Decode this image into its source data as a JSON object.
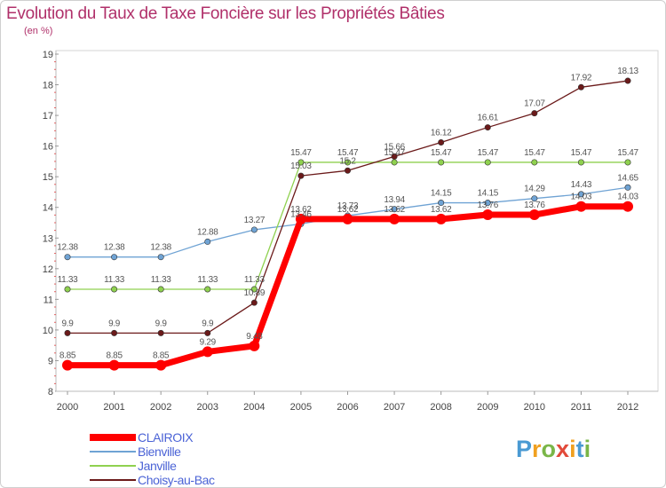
{
  "title": "Evolution du Taux de Taxe Foncière sur les Propriétés Bâties",
  "unit_label": "(en %)",
  "logo_text": "Proxiti",
  "colors": {
    "title": "#b0306a",
    "legend_text": "#4b63d6"
  },
  "chart_data": {
    "type": "line",
    "title": "Evolution du Taux de Taxe Foncière sur les Propriétés Bâties",
    "ylabel": "(en %)",
    "xlabel": "",
    "x": [
      "2000",
      "2001",
      "2002",
      "2003",
      "2004",
      "2005",
      "2006",
      "2007",
      "2008",
      "2009",
      "2010",
      "2011",
      "2012"
    ],
    "ylim": [
      8,
      19
    ],
    "yticks": [
      "8",
      "9",
      "10",
      "11",
      "12",
      "13",
      "14",
      "15",
      "16",
      "17",
      "18",
      "19"
    ],
    "grid": false,
    "legend_position": "bottom-left",
    "series": [
      {
        "name": "CLAIROIX",
        "color": "#ff0000",
        "weight": "thick",
        "values": [
          8.85,
          8.85,
          8.85,
          9.29,
          9.48,
          13.62,
          13.62,
          13.62,
          13.62,
          13.76,
          13.76,
          14.03,
          14.03
        ],
        "labels": [
          "8.85",
          "8.85",
          "8.85",
          "9.29",
          "9.48",
          "13.62",
          "13.62",
          "13.62",
          "13.62",
          "13.76",
          "13.76",
          "14.03",
          "14.03"
        ]
      },
      {
        "name": "Bienville",
        "color": "#6fa3d4",
        "weight": "thin",
        "values": [
          12.38,
          12.38,
          12.38,
          12.88,
          13.27,
          13.46,
          13.73,
          13.94,
          14.15,
          14.15,
          14.29,
          14.43,
          14.65
        ],
        "labels": [
          "12.38",
          "12.38",
          "12.38",
          "12.88",
          "13.27",
          "13.46",
          "13.73",
          "13.94",
          "14.15",
          "14.15",
          "14.29",
          "14.43",
          "14.65"
        ]
      },
      {
        "name": "Janville",
        "color": "#8fd14f",
        "weight": "thin",
        "values": [
          11.33,
          11.33,
          11.33,
          11.33,
          11.33,
          15.47,
          15.47,
          15.47,
          15.47,
          15.47,
          15.47,
          15.47,
          15.47
        ],
        "labels": [
          "11.33",
          "11.33",
          "11.33",
          "11.33",
          "11.33",
          "15.47",
          "15.47",
          "15.47",
          "15.47",
          "15.47",
          "15.47",
          "15.47",
          "15.47"
        ]
      },
      {
        "name": "Choisy-au-Bac",
        "color": "#6b1a1a",
        "weight": "thin",
        "values": [
          9.9,
          9.9,
          9.9,
          9.9,
          10.89,
          15.03,
          15.2,
          15.66,
          16.12,
          16.61,
          17.07,
          17.92,
          18.13
        ],
        "labels": [
          "9.9",
          "9.9",
          "9.9",
          "9.9",
          "10.89",
          "15.03",
          "15.2",
          "15.66",
          "16.12",
          "16.61",
          "17.07",
          "17.92",
          "18.13"
        ]
      }
    ]
  }
}
